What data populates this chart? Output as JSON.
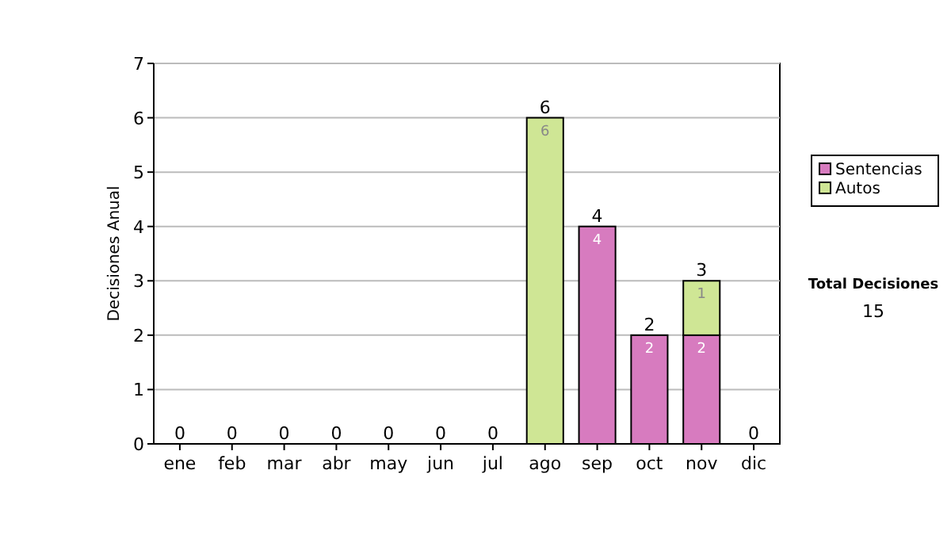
{
  "chart_data": {
    "type": "bar",
    "ylabel": "Decisiones Anual",
    "categories": [
      "ene",
      "feb",
      "mar",
      "abr",
      "may",
      "jun",
      "jul",
      "ago",
      "sep",
      "oct",
      "nov",
      "dic"
    ],
    "stacked": true,
    "series": [
      {
        "name": "Sentencias",
        "color": "#d77bbf",
        "values": [
          0,
          0,
          0,
          0,
          0,
          0,
          0,
          0,
          4,
          2,
          2,
          0
        ],
        "value_labels": [
          null,
          null,
          null,
          null,
          null,
          null,
          null,
          null,
          "4",
          "2",
          "2",
          null
        ]
      },
      {
        "name": "Autos",
        "color": "#cfe695",
        "values": [
          0,
          0,
          0,
          0,
          0,
          0,
          0,
          6,
          0,
          0,
          1,
          0
        ],
        "value_labels": [
          null,
          null,
          null,
          null,
          null,
          null,
          null,
          "6",
          null,
          null,
          "1",
          null
        ]
      }
    ],
    "totals": [
      "0",
      "0",
      "0",
      "0",
      "0",
      "0",
      "0",
      "6",
      "4",
      "2",
      "3",
      "0"
    ],
    "ylim": [
      0,
      7
    ],
    "yticks": [
      0,
      1,
      2,
      3,
      4,
      5,
      6,
      7
    ],
    "grid": "y",
    "legend": "right",
    "annotations": [
      "Total Decisiones",
      "15"
    ]
  }
}
